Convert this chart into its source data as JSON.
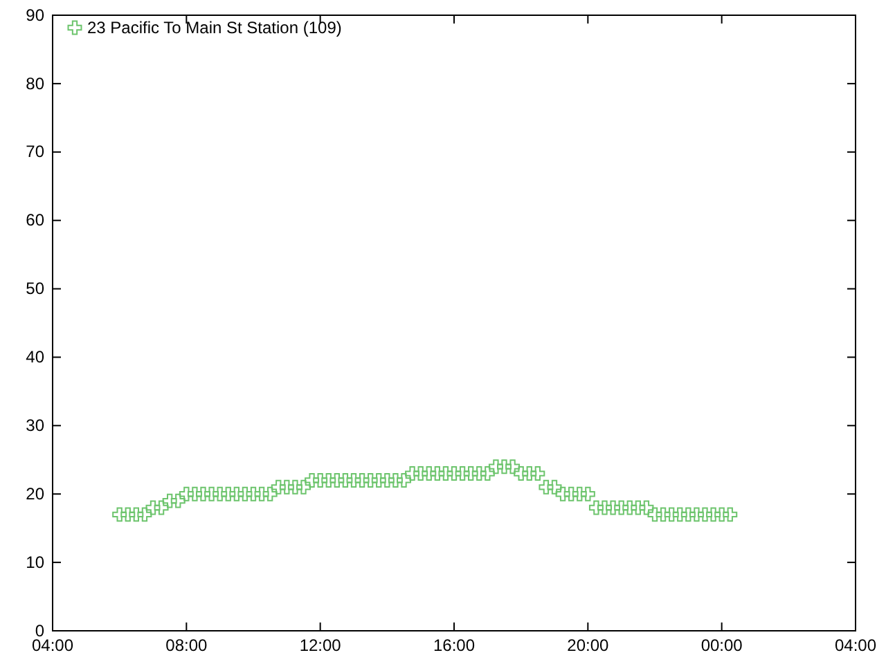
{
  "chart_data": {
    "type": "scatter",
    "marker": "cross",
    "legend": "top left",
    "grid": false,
    "x": [
      "2000-01-01T06:00",
      "2000-01-01T06:15",
      "2000-01-01T06:30",
      "2000-01-01T06:45",
      "2000-01-01T07:00",
      "2000-01-01T07:15",
      "2000-01-01T07:30",
      "2000-01-01T07:45",
      "2000-01-01T08:00",
      "2000-01-01T08:15",
      "2000-01-01T08:30",
      "2000-01-01T08:45",
      "2000-01-01T09:00",
      "2000-01-01T09:15",
      "2000-01-01T09:30",
      "2000-01-01T09:45",
      "2000-01-01T10:00",
      "2000-01-01T10:15",
      "2000-01-01T10:30",
      "2000-01-01T10:45",
      "2000-01-01T11:00",
      "2000-01-01T11:15",
      "2000-01-01T11:30",
      "2000-01-01T11:45",
      "2000-01-01T12:00",
      "2000-01-01T12:15",
      "2000-01-01T12:30",
      "2000-01-01T12:45",
      "2000-01-01T13:00",
      "2000-01-01T13:15",
      "2000-01-01T13:30",
      "2000-01-01T13:45",
      "2000-01-01T14:00",
      "2000-01-01T14:15",
      "2000-01-01T14:30",
      "2000-01-01T14:45",
      "2000-01-01T15:00",
      "2000-01-01T15:15",
      "2000-01-01T15:30",
      "2000-01-01T15:45",
      "2000-01-01T16:00",
      "2000-01-01T16:15",
      "2000-01-01T16:30",
      "2000-01-01T16:45",
      "2000-01-01T17:00",
      "2000-01-01T17:15",
      "2000-01-01T17:30",
      "2000-01-01T17:45",
      "2000-01-01T18:00",
      "2000-01-01T18:15",
      "2000-01-01T18:30",
      "2000-01-01T18:45",
      "2000-01-01T19:00",
      "2000-01-01T19:15",
      "2000-01-01T19:30",
      "2000-01-01T19:45",
      "2000-01-01T20:00",
      "2000-01-01T20:15",
      "2000-01-01T20:30",
      "2000-01-01T20:45",
      "2000-01-01T21:00",
      "2000-01-01T21:15",
      "2000-01-01T21:30",
      "2000-01-01T21:45",
      "2000-01-01T22:00",
      "2000-01-01T22:15",
      "2000-01-01T22:30",
      "2000-01-01T22:45",
      "2000-01-01T23:00",
      "2000-01-01T23:15",
      "2000-01-01T23:30",
      "2000-01-01T23:45",
      "2000-01-02T00:00",
      "2000-01-02T00:15"
    ],
    "series": [
      {
        "name": "23 Pacific To Main St Station (109)",
        "color": "#6cc46c",
        "values": [
          17,
          17,
          17,
          17,
          18,
          18,
          19,
          19,
          20,
          20,
          20,
          20,
          20,
          20,
          20,
          20,
          20,
          20,
          20,
          21,
          21,
          21,
          21,
          22,
          22,
          22,
          22,
          22,
          22,
          22,
          22,
          22,
          22,
          22,
          22,
          23,
          23,
          23,
          23,
          23,
          23,
          23,
          23,
          23,
          23,
          24,
          24,
          24,
          23,
          23,
          23,
          21,
          21,
          20,
          20,
          20,
          20,
          18,
          18,
          18,
          18,
          18,
          18,
          18,
          17,
          17,
          17,
          17,
          17,
          17,
          17,
          17,
          17,
          17
        ]
      }
    ],
    "xlim": [
      "2000-01-01T04:00",
      "2000-01-02T04:00"
    ],
    "xticks": [
      {
        "value": "2000-01-01T04:00",
        "label": "04:00"
      },
      {
        "value": "2000-01-01T08:00",
        "label": "08:00"
      },
      {
        "value": "2000-01-01T12:00",
        "label": "12:00"
      },
      {
        "value": "2000-01-01T16:00",
        "label": "16:00"
      },
      {
        "value": "2000-01-01T20:00",
        "label": "20:00"
      },
      {
        "value": "2000-01-02T00:00",
        "label": "00:00"
      },
      {
        "value": "2000-01-02T04:00",
        "label": "04:00"
      }
    ],
    "ylim": [
      0,
      90
    ],
    "yticks": [
      0,
      10,
      20,
      30,
      40,
      50,
      60,
      70,
      80,
      90
    ]
  }
}
